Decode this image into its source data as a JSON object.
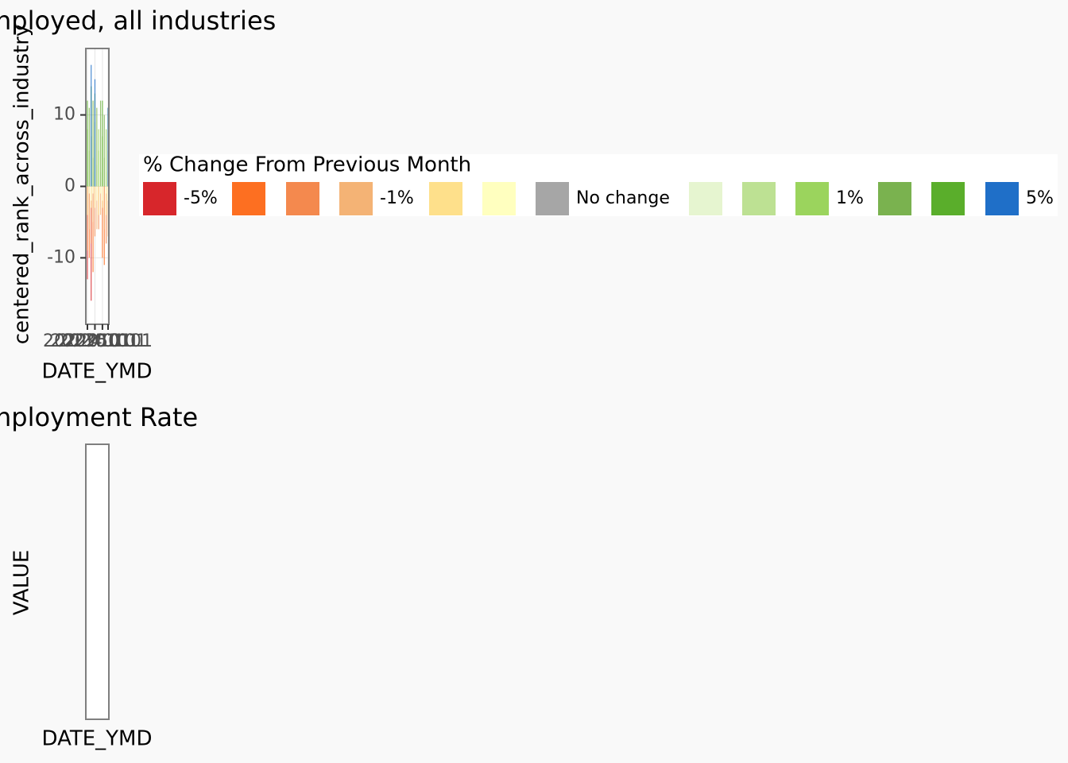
{
  "chart_data": [
    {
      "type": "bar",
      "title": "nployed, all industries",
      "x_label": "DATE_YMD",
      "y_label": "centered_rank_across_industry",
      "x": [
        0,
        1,
        2,
        3,
        4,
        5,
        6,
        7,
        8,
        9,
        10,
        11
      ],
      "xlim": [
        0,
        11
      ],
      "xticks": [
        {
          "value": 0,
          "label": "20220101"
        },
        {
          "value": 4,
          "label": "20230101"
        },
        {
          "value": 8,
          "label": "20240101"
        },
        {
          "value": 11,
          "label": "20250101"
        }
      ],
      "ylim": [
        -19.3,
        19.3
      ],
      "yticks": [
        -10,
        0,
        10
      ],
      "grid": true,
      "legend_title": "% Change From Previous Month",
      "legend_position": "right",
      "series": [
        {
          "name": "-5%",
          "color": "#d7262b",
          "values": [
            -13,
            null,
            -16,
            null,
            null,
            null,
            null,
            null,
            null,
            null,
            null,
            null
          ]
        },
        {
          "name": null,
          "color": "#fd6f21",
          "values": [
            null,
            -10,
            null,
            -12,
            null,
            null,
            null,
            null,
            -10,
            -11,
            null,
            null
          ]
        },
        {
          "name": null,
          "color": "#f4894e",
          "values": [
            -9,
            null,
            -8,
            null,
            -7,
            null,
            -6,
            null,
            null,
            null,
            -8,
            null
          ]
        },
        {
          "name": "-1%",
          "color": "#f4b375",
          "values": [
            null,
            -6,
            null,
            -5,
            null,
            -6,
            null,
            -4,
            null,
            -6,
            null,
            -7
          ]
        },
        {
          "name": null,
          "color": "#fee08b",
          "values": [
            -4,
            null,
            -3,
            null,
            -3,
            null,
            -4,
            null,
            -3,
            null,
            -4,
            null
          ]
        },
        {
          "name": null,
          "color": "#ffffbf",
          "values": [
            null,
            -1,
            -2,
            -1,
            null,
            -2,
            null,
            -1,
            -2,
            null,
            -1,
            -2
          ]
        },
        {
          "name": "No change",
          "color": "#a6a6a6",
          "values": [
            null,
            null,
            null,
            null,
            null,
            null,
            null,
            null,
            null,
            null,
            null,
            null
          ]
        },
        {
          "name": null,
          "color": "#e6f5d0",
          "values": [
            2,
            null,
            1,
            2,
            null,
            3,
            null,
            2,
            1,
            null,
            2,
            null
          ]
        },
        {
          "name": null,
          "color": "#bde193",
          "values": [
            null,
            5,
            null,
            4,
            6,
            null,
            5,
            null,
            null,
            4,
            null,
            5
          ]
        },
        {
          "name": "1%",
          "color": "#9bd45d",
          "values": [
            8,
            null,
            7,
            null,
            9,
            null,
            8,
            null,
            7,
            null,
            8,
            null
          ]
        },
        {
          "name": null,
          "color": "#7ab24f",
          "values": [
            null,
            11,
            null,
            12,
            null,
            11,
            null,
            12,
            null,
            10,
            null,
            11
          ]
        },
        {
          "name": null,
          "color": "#5aae2b",
          "values": [
            12,
            null,
            14,
            null,
            13,
            null,
            null,
            null,
            12,
            null,
            null,
            null
          ]
        },
        {
          "name": "5%",
          "color": "#1f6fc8",
          "values": [
            null,
            null,
            17,
            null,
            15,
            null,
            null,
            null,
            null,
            null,
            null,
            11
          ]
        }
      ]
    },
    {
      "type": "line",
      "title": "nployment Rate",
      "x_label": "DATE_YMD",
      "y_label": "VALUE"
    }
  ]
}
